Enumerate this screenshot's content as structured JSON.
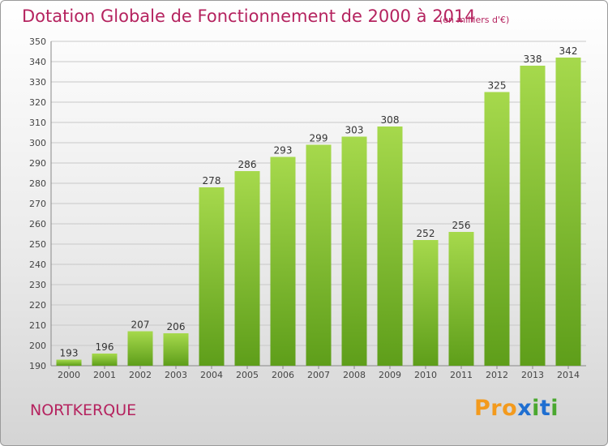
{
  "header": {
    "title": "Dotation Globale de Fonctionnement de 2000 à 2014",
    "unit_note": "(en milliers d'€)"
  },
  "footer": {
    "commune": "NORTKERQUE",
    "brand_logo_text": "Proxiti",
    "brand_colors": [
      "#f39a1d",
      "#f39a1d",
      "#f39a1d",
      "#1f6fd1",
      "#4aa82f",
      "#1f6fd1",
      "#4aa82f"
    ]
  },
  "colors": {
    "title": "#b5235f",
    "bar_light": "#a6d94c",
    "bar_dark": "#5e9e1a"
  },
  "chart_data": {
    "type": "bar",
    "title": "Dotation Globale de Fonctionnement de 2000 à 2014",
    "subtitle": "(en milliers d'€)",
    "categories": [
      "2000",
      "2001",
      "2002",
      "2003",
      "2004",
      "2005",
      "2006",
      "2007",
      "2008",
      "2009",
      "2010",
      "2011",
      "2012",
      "2013",
      "2014"
    ],
    "values": [
      193,
      196,
      207,
      206,
      278,
      286,
      293,
      299,
      303,
      308,
      252,
      256,
      325,
      338,
      342
    ],
    "ylim": [
      190,
      350
    ],
    "yticks": [
      190,
      200,
      210,
      220,
      230,
      240,
      250,
      260,
      270,
      280,
      290,
      300,
      310,
      320,
      330,
      340,
      350
    ],
    "xlabel": "",
    "ylabel": "",
    "grid": true,
    "data_labels": true
  }
}
